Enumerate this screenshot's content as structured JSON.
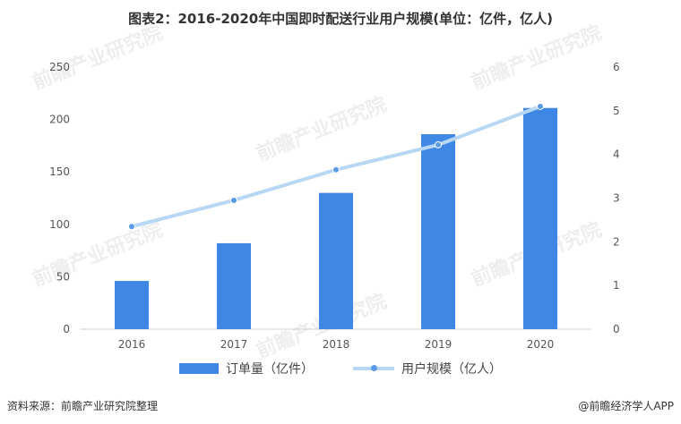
{
  "title": "图表2：2016-2020年中国即时配送行业用户规模(单位：亿件，亿人)",
  "source": "资料来源：前瞻产业研究院整理",
  "brand": "@前瞻经济学人APP",
  "watermark": "前瞻产业研究院",
  "colors": {
    "bar": "#3f87e4",
    "line": "#b7d7f5",
    "marker": "#5a9be6"
  },
  "chart_data": {
    "type": "bar",
    "categories": [
      "2016",
      "2017",
      "2018",
      "2019",
      "2020"
    ],
    "series": [
      {
        "name": "订单量（亿件）",
        "type": "bar",
        "axis": "left",
        "values": [
          46,
          82,
          130,
          186,
          211
        ]
      },
      {
        "name": "用户规模（亿人）",
        "type": "line",
        "axis": "right",
        "values": [
          2.35,
          2.95,
          3.65,
          4.22,
          5.1
        ]
      }
    ],
    "ylim_left": [
      0,
      250
    ],
    "yticks_left": [
      0,
      50,
      100,
      150,
      200,
      250
    ],
    "ylim_right": [
      0,
      6
    ],
    "yticks_right": [
      0,
      1,
      2,
      3,
      4,
      5,
      6
    ],
    "grid": false,
    "legend": "bottom"
  }
}
